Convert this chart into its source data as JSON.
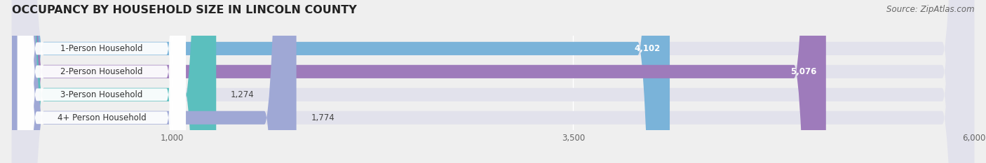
{
  "title": "OCCUPANCY BY HOUSEHOLD SIZE IN LINCOLN COUNTY",
  "source": "Source: ZipAtlas.com",
  "categories": [
    "1-Person Household",
    "2-Person Household",
    "3-Person Household",
    "4+ Person Household"
  ],
  "values": [
    4102,
    5076,
    1274,
    1774
  ],
  "bar_colors": [
    "#7ab3d9",
    "#9e7bbb",
    "#5bbfbe",
    "#9fa8d5"
  ],
  "xlim": [
    0,
    6500
  ],
  "xdata_max": 6000,
  "xticks": [
    1000,
    3500,
    6000
  ],
  "xtick_labels": [
    "1,000",
    "3,500",
    "6,000"
  ],
  "background_color": "#efefef",
  "bar_bg_color": "#e2e2ec",
  "label_bg_color": "#ffffff",
  "label_text_color": "#333333",
  "title_fontsize": 11.5,
  "label_fontsize": 8.5,
  "value_fontsize": 8.5,
  "source_fontsize": 8.5,
  "tick_fontsize": 8.5
}
